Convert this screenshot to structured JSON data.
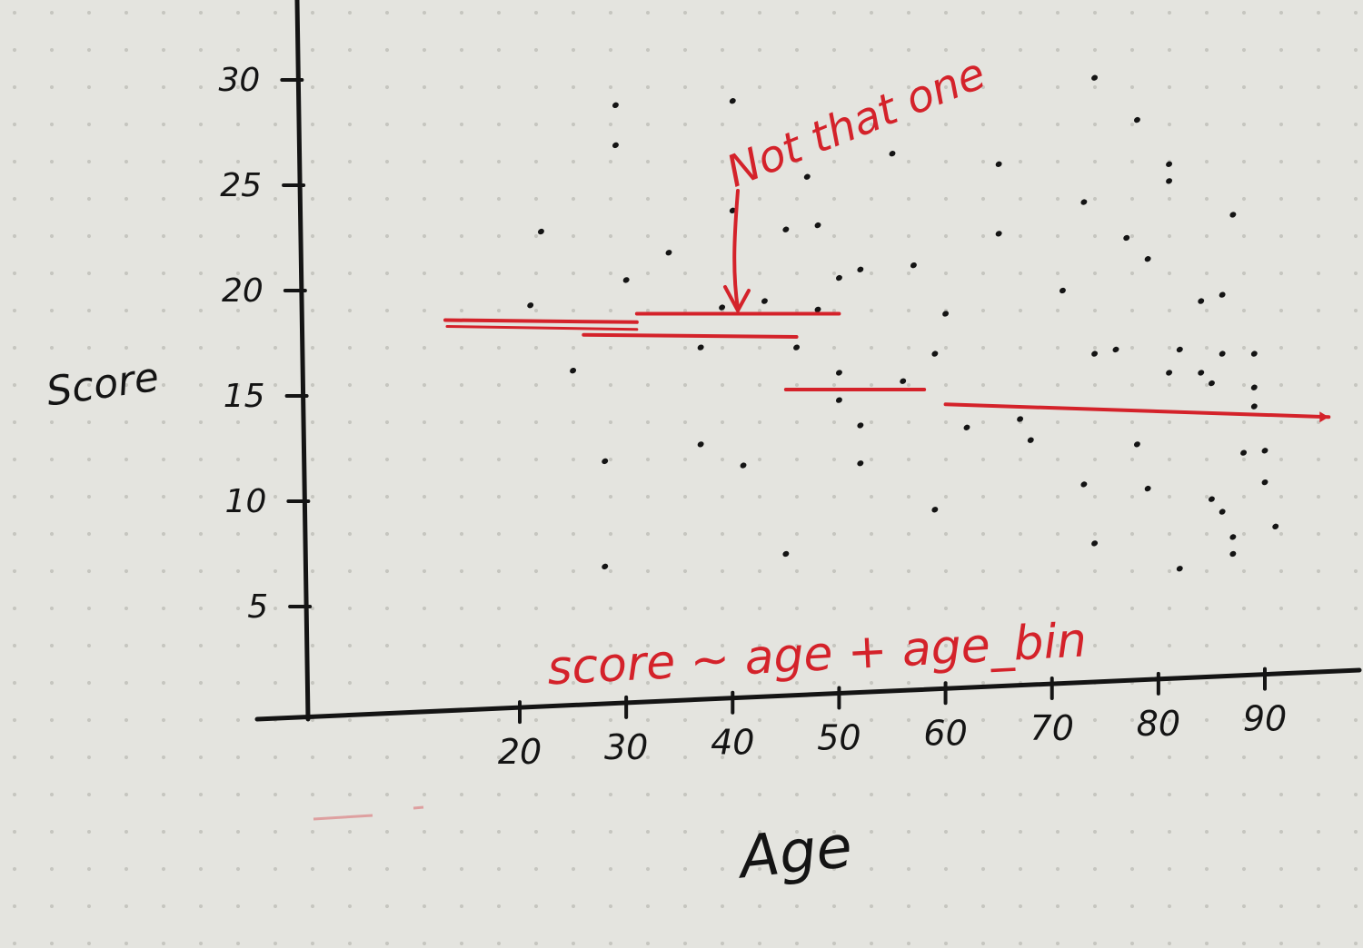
{
  "chart_data": {
    "type": "scatter",
    "xlabel": "Age",
    "ylabel": "Score",
    "xticks": [
      20,
      30,
      40,
      50,
      60,
      70,
      80,
      90
    ],
    "yticks": [
      5,
      10,
      15,
      20,
      25,
      30
    ],
    "xlim": [
      7,
      96
    ],
    "ylim": [
      0,
      31
    ],
    "grid": false,
    "colors": {
      "ink": "#141414",
      "annotation": "#d4222a",
      "paper": "#e4e4df",
      "dot_grid": "#c6c6c0"
    },
    "points": [
      [
        22,
        22.8
      ],
      [
        21,
        19.3
      ],
      [
        25,
        16.2
      ],
      [
        29,
        28.8
      ],
      [
        29,
        26.9
      ],
      [
        30,
        20.5
      ],
      [
        28,
        11.9
      ],
      [
        28,
        6.9
      ],
      [
        34,
        21.8
      ],
      [
        37,
        17.3
      ],
      [
        37,
        12.7
      ],
      [
        40,
        29.0
      ],
      [
        40,
        23.8
      ],
      [
        39,
        19.2
      ],
      [
        41,
        11.7
      ],
      [
        43,
        19.5
      ],
      [
        45,
        22.9
      ],
      [
        47,
        25.4
      ],
      [
        48,
        23.1
      ],
      [
        48,
        19.1
      ],
      [
        46,
        17.3
      ],
      [
        45,
        7.5
      ],
      [
        50,
        20.6
      ],
      [
        50,
        16.1
      ],
      [
        50,
        14.8
      ],
      [
        52,
        21.0
      ],
      [
        52,
        13.6
      ],
      [
        52,
        11.8
      ],
      [
        55,
        26.5
      ],
      [
        56,
        15.7
      ],
      [
        57,
        21.2
      ],
      [
        59,
        17.0
      ],
      [
        60,
        18.9
      ],
      [
        59,
        9.6
      ],
      [
        62,
        13.5
      ],
      [
        65,
        26.0
      ],
      [
        65,
        22.7
      ],
      [
        67,
        13.9
      ],
      [
        68,
        12.9
      ],
      [
        71,
        20.0
      ],
      [
        73,
        24.2
      ],
      [
        74,
        17.0
      ],
      [
        76,
        17.2
      ],
      [
        73,
        10.8
      ],
      [
        74,
        8.0
      ],
      [
        74,
        30.1
      ],
      [
        77,
        22.5
      ],
      [
        78,
        28.1
      ],
      [
        78,
        12.7
      ],
      [
        79,
        10.6
      ],
      [
        79,
        21.5
      ],
      [
        81,
        26.0
      ],
      [
        81,
        25.2
      ],
      [
        82,
        17.2
      ],
      [
        81,
        16.1
      ],
      [
        82,
        6.8
      ],
      [
        84,
        19.5
      ],
      [
        84,
        16.1
      ],
      [
        85,
        15.6
      ],
      [
        85,
        10.1
      ],
      [
        86,
        19.8
      ],
      [
        86,
        9.5
      ],
      [
        86,
        17.0
      ],
      [
        87,
        23.6
      ],
      [
        87,
        8.3
      ],
      [
        87,
        7.5
      ],
      [
        88,
        12.3
      ],
      [
        89,
        17.0
      ],
      [
        89,
        15.4
      ],
      [
        89,
        14.5
      ],
      [
        90,
        12.4
      ],
      [
        90,
        10.9
      ],
      [
        91,
        8.8
      ]
    ],
    "bin_lines": [
      {
        "x": [
          13,
          31
        ],
        "y": [
          18.6,
          18.5
        ]
      },
      {
        "x": [
          26,
          46
        ],
        "y": [
          17.9,
          17.8
        ]
      },
      {
        "x": [
          31,
          50
        ],
        "y": [
          18.9,
          18.9
        ]
      },
      {
        "x": [
          45,
          58
        ],
        "y": [
          15.3,
          15.3
        ]
      },
      {
        "x": [
          60,
          96
        ],
        "y": [
          14.6,
          14.0
        ]
      }
    ]
  },
  "annotations": {
    "arrow_label": "Not that one",
    "formula": "score ~ age + age_bin"
  }
}
